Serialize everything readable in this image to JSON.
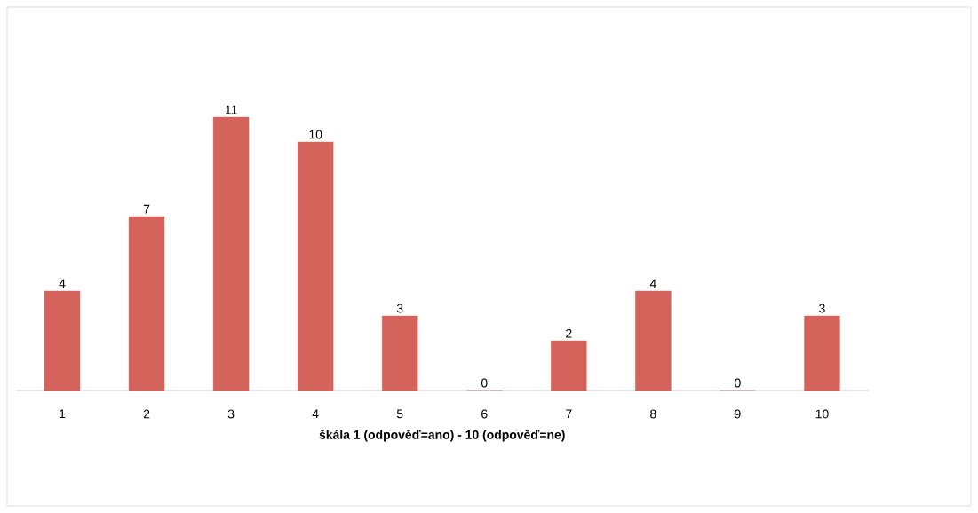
{
  "chart_data": {
    "type": "bar",
    "xlabel": "škála 1 (odpověď=ano) - 10 (odpověď=ne)",
    "categories": [
      "1",
      "2",
      "3",
      "4",
      "5",
      "6",
      "7",
      "8",
      "9",
      "10"
    ],
    "values": [
      4,
      7,
      11,
      10,
      3,
      0,
      2,
      4,
      0,
      3
    ],
    "color": "#d4635b",
    "data_labels": true
  }
}
